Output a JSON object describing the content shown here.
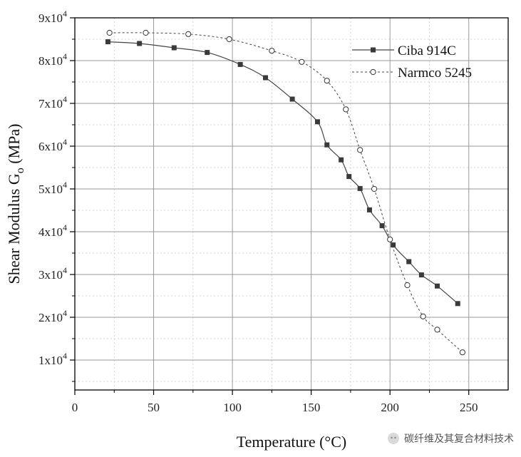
{
  "chart_data": {
    "type": "line",
    "xlabel": "Temperature (°C)",
    "ylabel": "Shear Modulus Go (MPa)",
    "xlim": [
      0,
      275
    ],
    "ylim": [
      3000,
      90000
    ],
    "x_ticks": [
      0,
      50,
      100,
      150,
      200,
      250
    ],
    "y_ticks": [
      10000,
      20000,
      30000,
      40000,
      50000,
      60000,
      70000,
      80000,
      90000
    ],
    "y_tick_labels": [
      {
        "mantissa": "1x10",
        "exp": "4"
      },
      {
        "mantissa": "2x10",
        "exp": "4"
      },
      {
        "mantissa": "3x10",
        "exp": "4"
      },
      {
        "mantissa": "4x10",
        "exp": "4"
      },
      {
        "mantissa": "5x10",
        "exp": "4"
      },
      {
        "mantissa": "6x10",
        "exp": "4"
      },
      {
        "mantissa": "7x10",
        "exp": "4"
      },
      {
        "mantissa": "8x10",
        "exp": "4"
      },
      {
        "mantissa": "9x10",
        "exp": "4"
      }
    ],
    "grid": true,
    "legend_position": "top-right",
    "series": [
      {
        "name": "Ciba 914C",
        "marker": "filled-square",
        "line": "solid",
        "color": "#444444",
        "x": [
          21,
          41,
          63,
          84,
          105,
          121,
          138,
          154,
          160,
          169,
          174,
          181,
          187,
          195,
          202,
          212,
          220,
          230,
          243
        ],
        "y": [
          84400,
          84000,
          83000,
          81900,
          79100,
          76000,
          71000,
          65700,
          60300,
          56800,
          52900,
          50100,
          45100,
          41400,
          36900,
          33000,
          29900,
          27300,
          23200
        ]
      },
      {
        "name": "Narmco 5245",
        "marker": "open-circle",
        "line": "dashed",
        "color": "#444444",
        "x": [
          22,
          45,
          72,
          98,
          125,
          144,
          160,
          172,
          181,
          190,
          200,
          211,
          221,
          230,
          246
        ],
        "y": [
          86500,
          86500,
          86200,
          85000,
          82300,
          79700,
          75300,
          68600,
          59100,
          50000,
          38200,
          27500,
          20200,
          17100,
          11800
        ]
      }
    ]
  },
  "watermark": {
    "text": "碳纤维及其复合材料技术"
  }
}
